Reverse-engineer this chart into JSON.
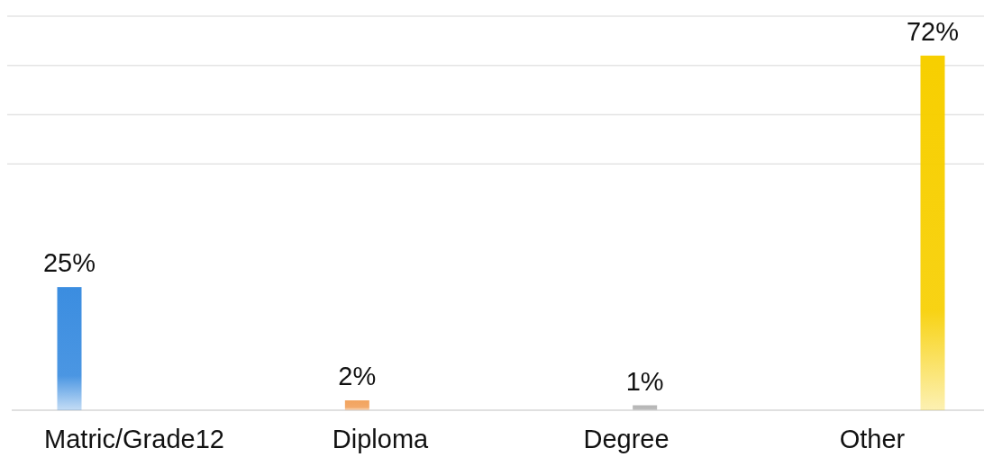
{
  "chart_data": {
    "type": "bar",
    "categories": [
      "Matric/Grade12",
      "Diploma",
      "Degree",
      "Other"
    ],
    "values": [
      25,
      2,
      1,
      72
    ],
    "colors": [
      "#3b8de0",
      "#f2a35e",
      "#b5b5b5",
      "#f7cf00"
    ],
    "value_labels": [
      "25%",
      "2%",
      "1%",
      "72%"
    ],
    "ylim": [
      0,
      80
    ],
    "yticks": [
      {
        "value": 50,
        "label": null
      },
      {
        "value": 60,
        "label": null
      },
      {
        "value": 70,
        "label": null
      },
      {
        "value": 80,
        "label": null
      }
    ],
    "grid": "y",
    "tick_labels": "x"
  }
}
